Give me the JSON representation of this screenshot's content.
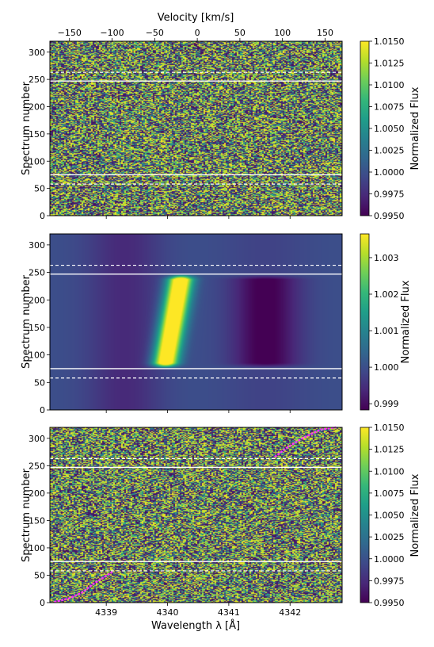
{
  "colors": {
    "viridis": [
      "#440154",
      "#482878",
      "#3e4989",
      "#31688e",
      "#26828e",
      "#1f9e89",
      "#35b779",
      "#6ece58",
      "#b5de2b",
      "#fde725"
    ],
    "planet_track": "#ff33ff",
    "marker_lines": "#ffffff"
  },
  "chart_data": [
    {
      "type": "heatmap",
      "panel": "top",
      "content": "noisy normalized-flux residual map",
      "top_axis": {
        "label": "Velocity [km/s]",
        "ticks": [
          -150,
          -100,
          -50,
          0,
          50,
          100,
          150
        ],
        "tick_labels": [
          "−150",
          "−100",
          "−50",
          "0",
          "50",
          "100",
          "150"
        ],
        "range": [
          -173,
          170
        ]
      },
      "xlim": [
        4338.08,
        4342.85
      ],
      "ylabel": "Spectrum number",
      "ylim": [
        0,
        320
      ],
      "yticks": [
        0,
        50,
        100,
        150,
        200,
        250,
        300
      ],
      "colorbar": {
        "label": "Normalized Flux",
        "range": [
          0.995,
          1.015
        ],
        "ticks": [
          0.995,
          0.9975,
          1.0,
          1.0025,
          1.005,
          1.0075,
          1.01,
          1.0125,
          1.015
        ],
        "tick_labels": [
          "0.9950",
          "0.9975",
          "1.0000",
          "1.0025",
          "1.0050",
          "1.0075",
          "1.0100",
          "1.0125",
          "1.0150"
        ]
      },
      "solid_lines_y": [
        75,
        247
      ],
      "dashed_lines_y": [
        58,
        263
      ]
    },
    {
      "type": "heatmap",
      "panel": "middle",
      "content": "model signal: bright emission feature centred near 4340.1 Å between spectra 75 and 247, drifting to longer wavelength with spectrum number, faint absorption trough near 4341.5 Å",
      "xlim": [
        4338.08,
        4342.85
      ],
      "ylabel": "Spectrum number",
      "ylim": [
        0,
        320
      ],
      "yticks": [
        0,
        50,
        100,
        150,
        200,
        250,
        300
      ],
      "colorbar": {
        "label": "Normalized Flux",
        "range": [
          0.99883,
          1.00365
        ],
        "ticks": [
          0.999,
          1.0,
          1.001,
          1.002,
          1.003
        ],
        "tick_labels": [
          "0.999",
          "1.000",
          "1.001",
          "1.002",
          "1.003"
        ]
      },
      "solid_lines_y": [
        75,
        247
      ],
      "dashed_lines_y": [
        58,
        263
      ]
    },
    {
      "type": "heatmap",
      "panel": "bottom",
      "content": "noisy residual map with overplotted track segments",
      "xlabel": "Wavelength λ [Å]",
      "xlim": [
        4338.08,
        4342.85
      ],
      "xticks": [
        4339,
        4340,
        4341,
        4342
      ],
      "ylabel": "Spectrum number",
      "ylim": [
        0,
        320
      ],
      "yticks": [
        0,
        50,
        100,
        150,
        200,
        250,
        300
      ],
      "colorbar": {
        "label": "Normalized Flux",
        "range": [
          0.995,
          1.015
        ],
        "ticks": [
          0.995,
          0.9975,
          1.0,
          1.0025,
          1.005,
          1.0075,
          1.01,
          1.0125,
          1.015
        ],
        "tick_labels": [
          "0.9950",
          "0.9975",
          "1.0000",
          "1.0025",
          "1.0050",
          "1.0075",
          "1.0100",
          "1.0125",
          "1.0150"
        ]
      },
      "solid_lines_y": [
        75,
        247
      ],
      "dashed_lines_y": [
        58,
        263
      ],
      "tracks": [
        {
          "x": [
            4338.15,
            4338.4,
            4338.6,
            4338.8,
            4339.1
          ],
          "y": [
            1,
            8,
            18,
            35,
            56
          ]
        },
        {
          "x": [
            4341.75,
            4341.95,
            4342.2,
            4342.5,
            4342.75
          ],
          "y": [
            266,
            283,
            300,
            316,
            320
          ]
        }
      ]
    }
  ]
}
